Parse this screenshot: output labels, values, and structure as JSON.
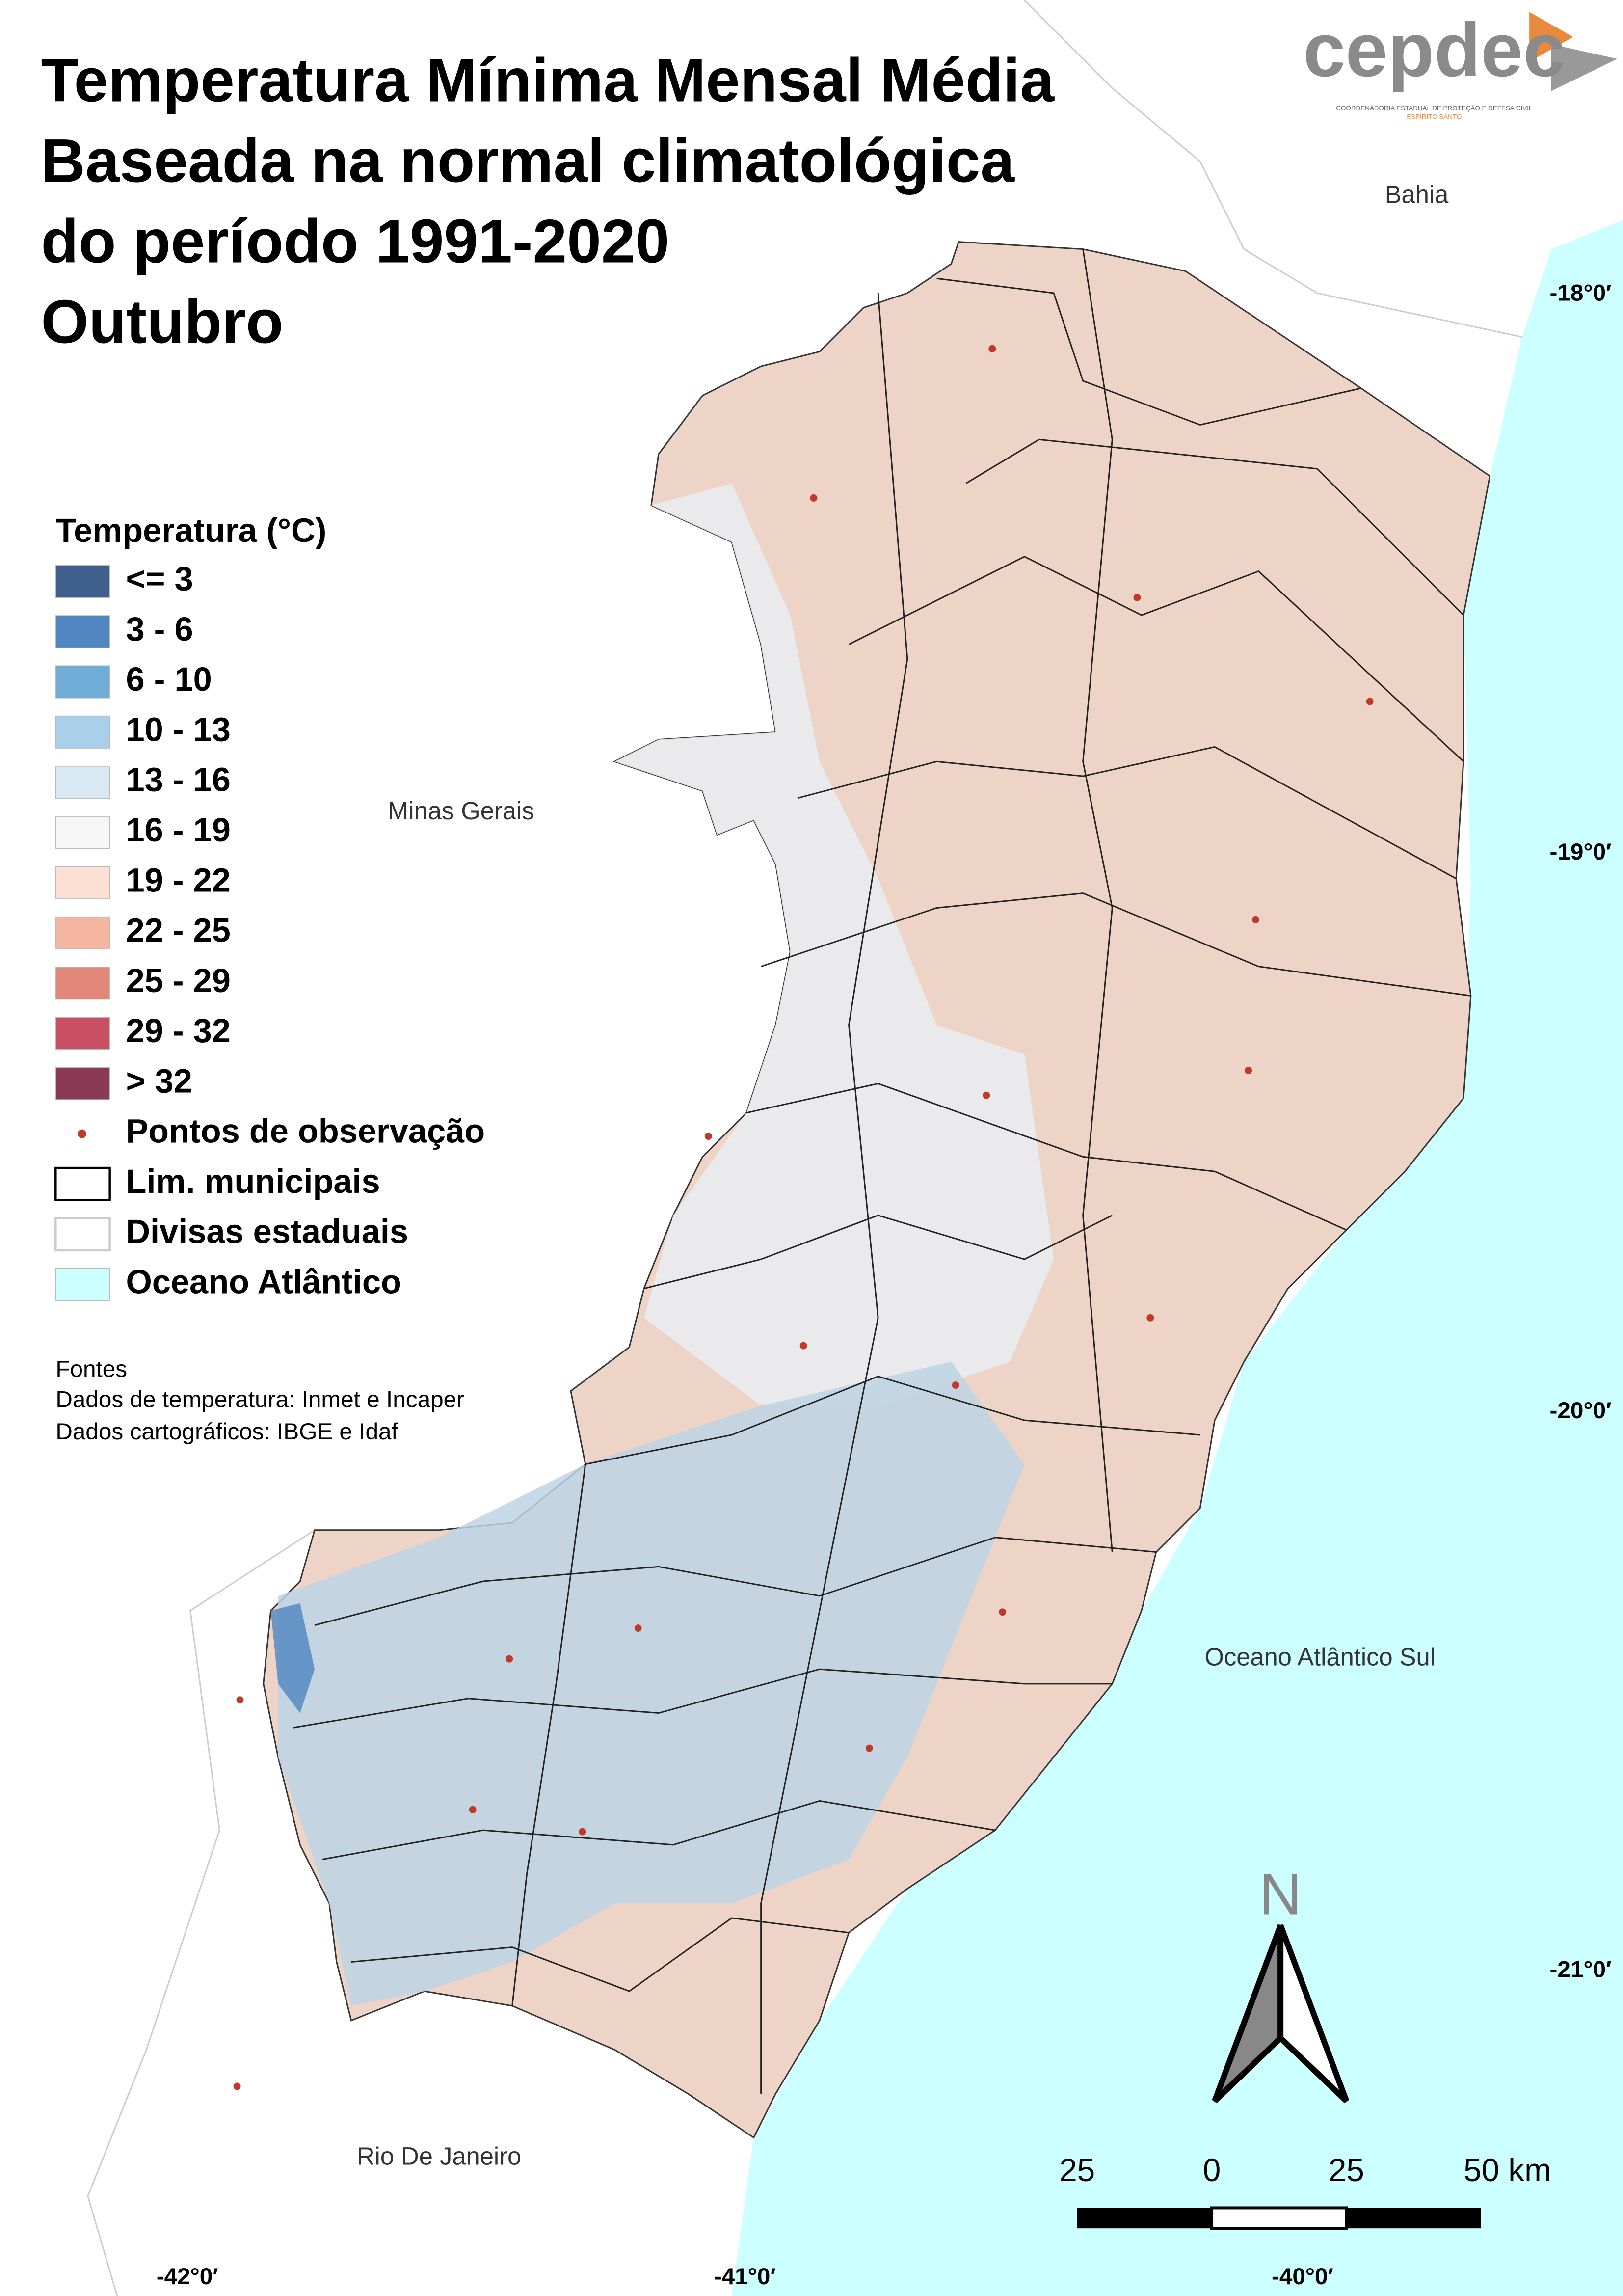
{
  "title": [
    "Temperatura Mínima Mensal Média",
    "Baseada na normal climatológica",
    "do período 1991-2020",
    "Outubro"
  ],
  "logo": {
    "name": "cepdec",
    "subtitle": "COORDENADORIA ESTADUAL DE PROTEÇÃO E DEFESA CIVIL",
    "state": "ESPÍRITO SANTO"
  },
  "legend": {
    "title": "Temperatura (°C)",
    "items": [
      {
        "label": "<= 3",
        "color": "#3f5f8c",
        "symbol": "fill"
      },
      {
        "label": "3 - 6",
        "color": "#4f86c0",
        "symbol": "fill"
      },
      {
        "label": "6 - 10",
        "color": "#6fadd6",
        "symbol": "fill"
      },
      {
        "label": "10 - 13",
        "color": "#a9d0e8",
        "symbol": "fill"
      },
      {
        "label": "13 - 16",
        "color": "#d9e9f3",
        "symbol": "fill"
      },
      {
        "label": "16 - 19",
        "color": "#f7f7f7",
        "symbol": "fill"
      },
      {
        "label": "19 - 22",
        "color": "#fbe0d3",
        "symbol": "fill"
      },
      {
        "label": "22 - 25",
        "color": "#f4b6a0",
        "symbol": "fill"
      },
      {
        "label": "25 - 29",
        "color": "#e2877a",
        "symbol": "fill"
      },
      {
        "label": "29 - 32",
        "color": "#c94f63",
        "symbol": "fill"
      },
      {
        "label": "> 32",
        "color": "#8a3a55",
        "symbol": "fill"
      },
      {
        "label": "Pontos de observação",
        "color": "#c0392b",
        "symbol": "point"
      },
      {
        "label": "Lim. municipais",
        "color": "#000000",
        "symbol": "outline"
      },
      {
        "label": "Divisas estaduais",
        "color": "#cccccc",
        "symbol": "outline"
      },
      {
        "label": "Oceano Atlântico",
        "color": "#ccffff",
        "symbol": "fill"
      }
    ]
  },
  "sources": [
    "Fontes",
    "Dados de temperatura: Inmet e Incaper",
    "Dados cartográficos: IBGE e Idaf"
  ],
  "places": [
    "Bahia",
    "Minas Gerais",
    "Oceano Atlântico Sul",
    "Rio De Janeiro"
  ],
  "latitude_labels": [
    "-18°0′",
    "-19°0′",
    "-20°0′",
    "-21°0′"
  ],
  "longitude_labels": [
    "-42°0′",
    "-41°0′",
    "-40°0′"
  ],
  "scale_bar": [
    "25",
    "0",
    "25",
    "50 km"
  ],
  "north": "N"
}
